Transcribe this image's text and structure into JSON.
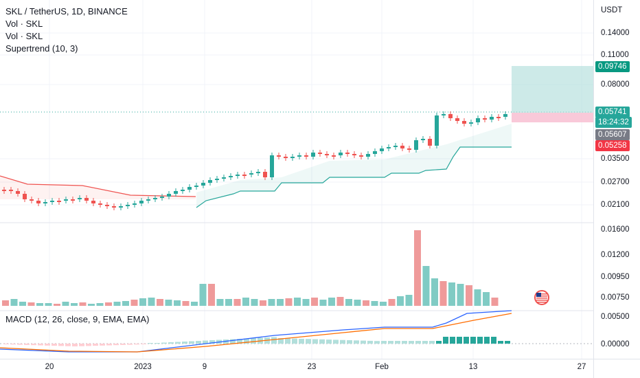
{
  "legend": {
    "symbol": "SKL / TetherUS, 1D, BINANCE",
    "vol1": "Vol · SKL",
    "vol2": "Vol · SKL",
    "supertrend": "Supertrend (10, 3)",
    "macd": "MACD (12, 26, close, 9, EMA, EMA)"
  },
  "y_axis": {
    "currency": "USDT",
    "price_labels": [
      "0.14000",
      "0.11000",
      "0.08000",
      "0.03500",
      "0.02700",
      "0.02100"
    ],
    "volume_labels": [
      "0.01600",
      "0.01200",
      "0.00950",
      "0.00750"
    ],
    "macd_labels": [
      "0.00500",
      "0.00000"
    ]
  },
  "price_tags": [
    {
      "value": "0.09746",
      "color": "#089981"
    },
    {
      "value": "0.05741",
      "color": "#26a69a"
    },
    {
      "value": "18:24:32",
      "color": "#26a69a"
    },
    {
      "value": "0.05607",
      "color": "#787b86"
    },
    {
      "value": "0.05258",
      "color": "#f23645"
    }
  ],
  "x_axis": {
    "labels": [
      "20",
      "2023",
      "9",
      "23",
      "Feb",
      "13",
      "27"
    ]
  },
  "colors": {
    "up": "#26a69a",
    "down": "#ef5350",
    "macd_line": "#2962ff",
    "signal_line": "#ff6d00"
  },
  "icons": [
    "us-flag-icon"
  ]
}
